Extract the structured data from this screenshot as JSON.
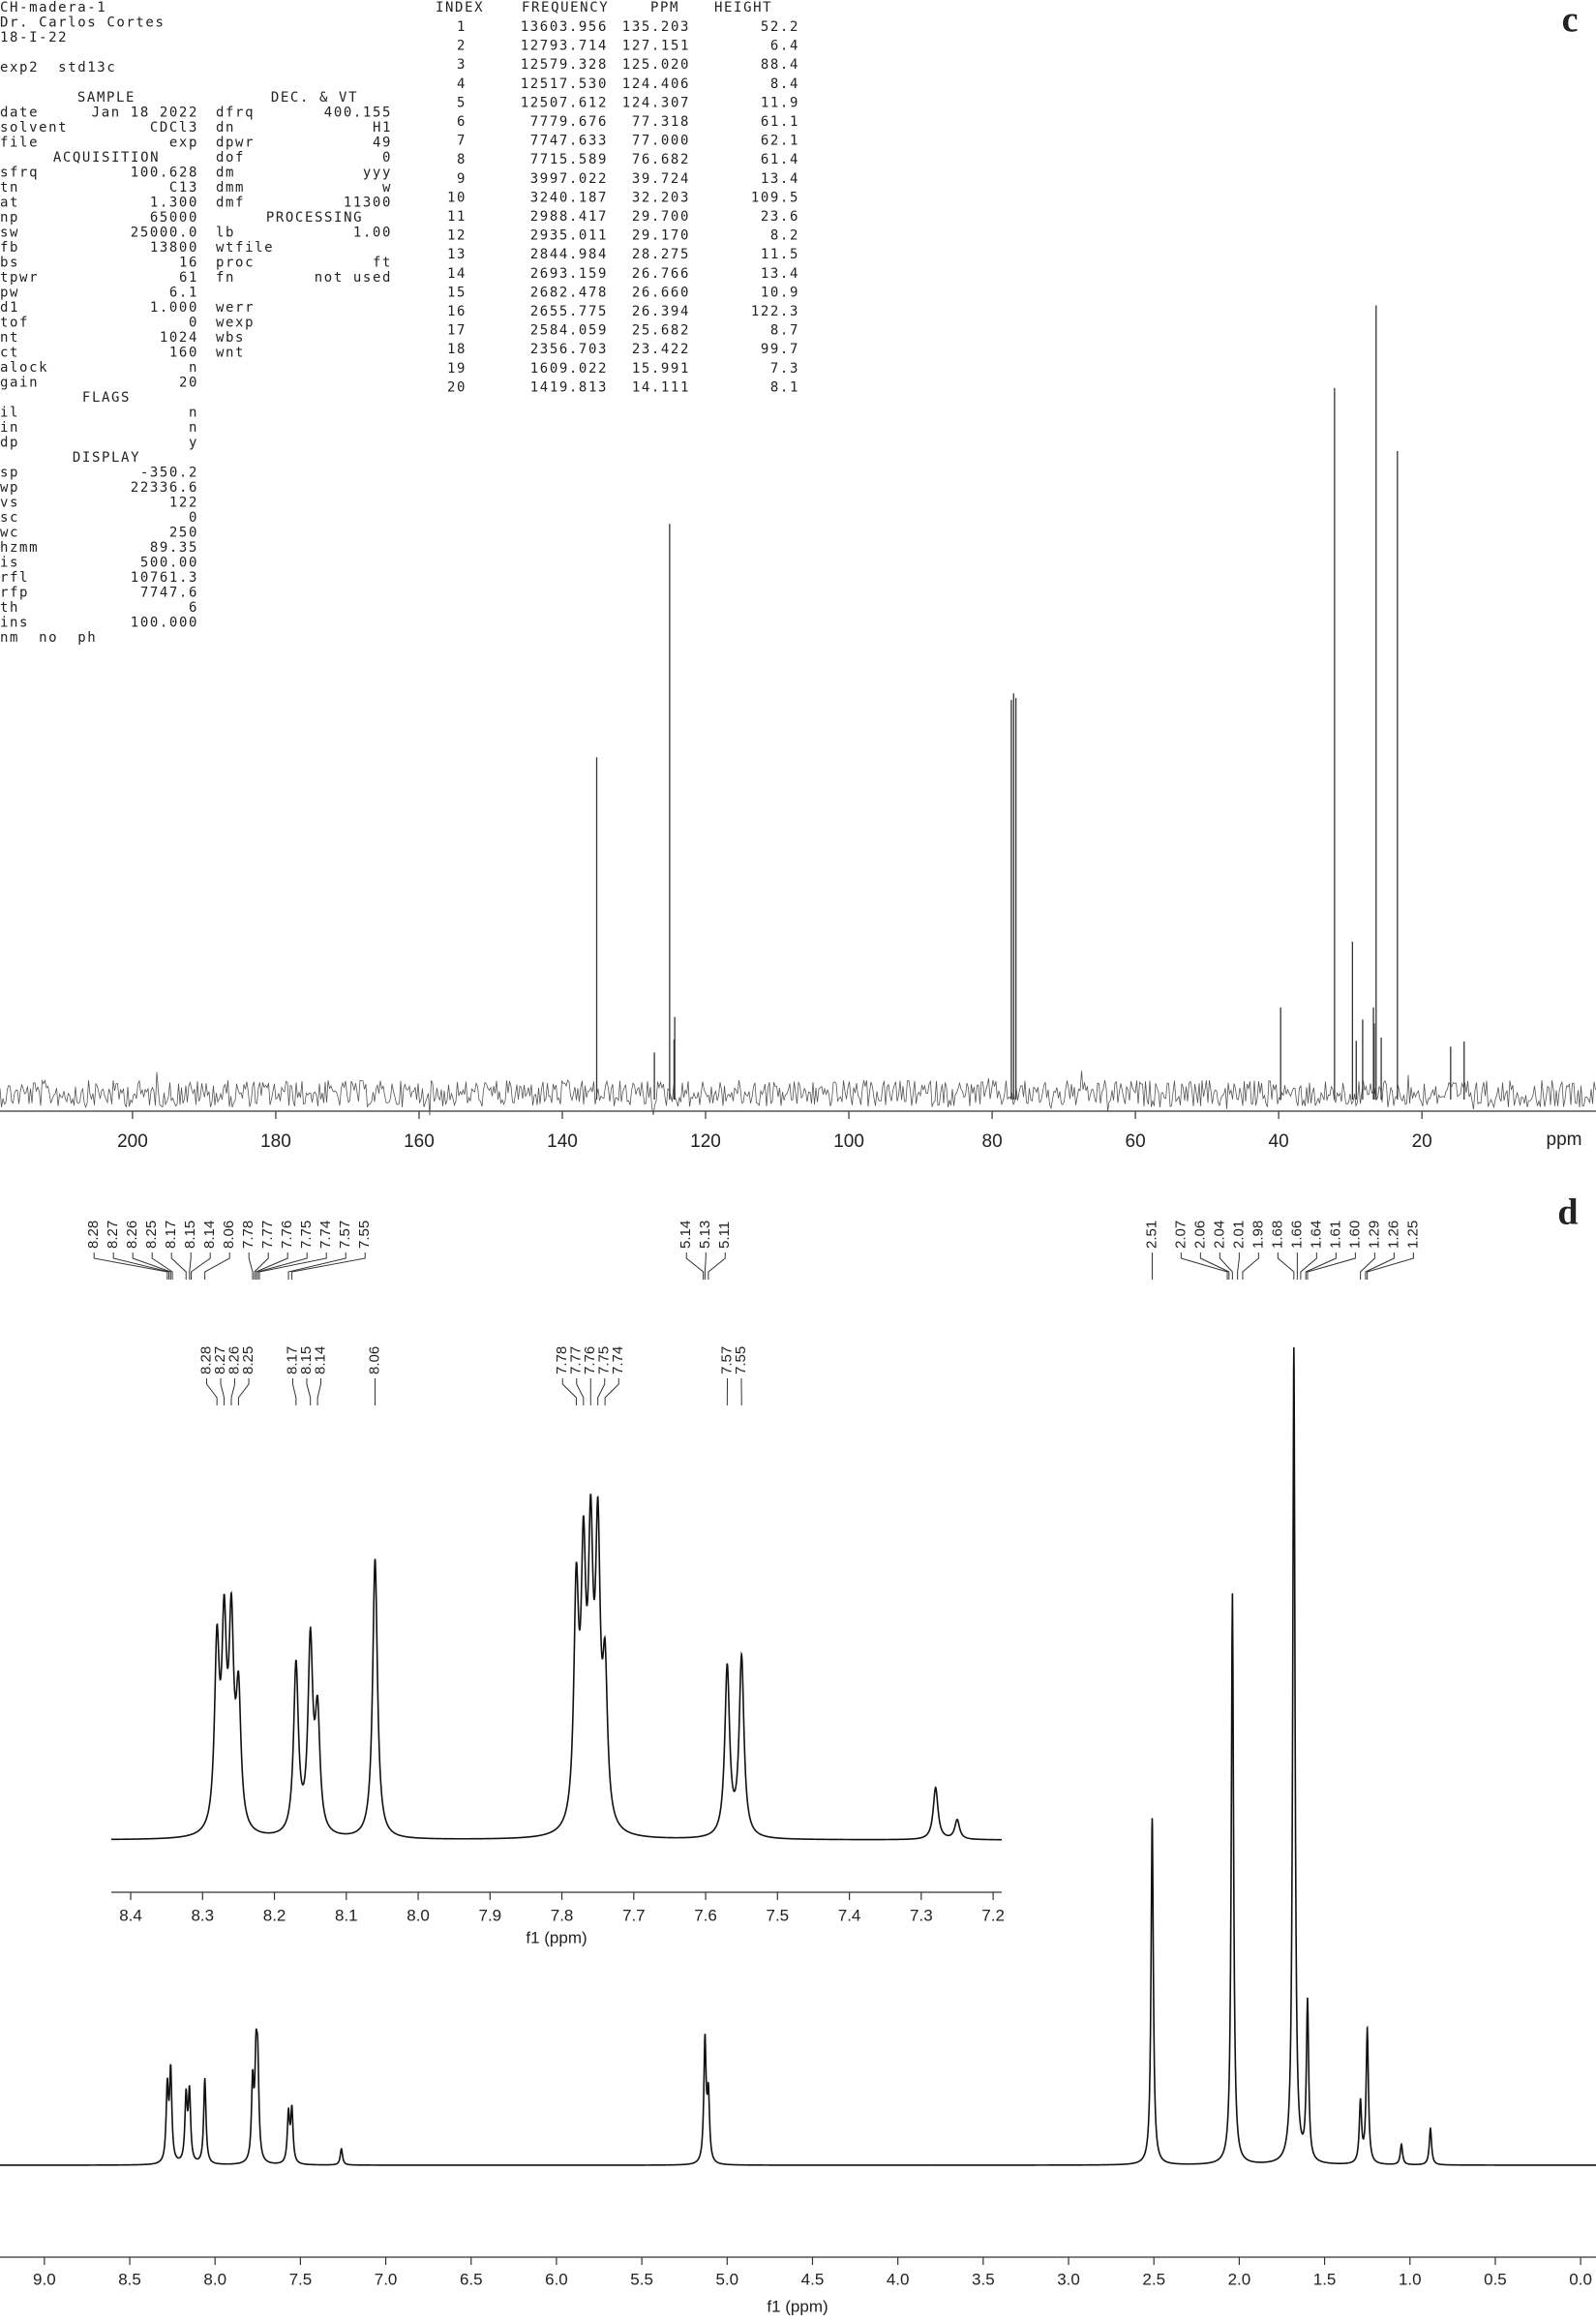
{
  "parameters": {
    "header": [
      "CH-madera-1",
      "Dr. Carlos Cortes",
      "18-I-22"
    ],
    "experiment": "exp2  std13c",
    "left": [
      "SAMPLE",
      [
        "date",
        "Jan 18 2022"
      ],
      [
        "solvent",
        "CDCl3"
      ],
      [
        "file",
        "exp"
      ],
      "ACQUISITION",
      [
        "sfrq",
        "100.628"
      ],
      [
        "tn",
        "C13"
      ],
      [
        "at",
        "1.300"
      ],
      [
        "np",
        "65000"
      ],
      [
        "sw",
        "25000.0"
      ],
      [
        "fb",
        "13800"
      ],
      [
        "bs",
        "16"
      ],
      [
        "tpwr",
        "61"
      ],
      [
        "pw",
        "6.1"
      ],
      [
        "d1",
        "1.000"
      ],
      [
        "tof",
        "0"
      ],
      [
        "nt",
        "1024"
      ],
      [
        "ct",
        "160"
      ],
      [
        "alock",
        "n"
      ],
      [
        "gain",
        "20"
      ],
      "FLAGS",
      [
        "il",
        "n"
      ],
      [
        "in",
        "n"
      ],
      [
        "dp",
        "y"
      ],
      "DISPLAY",
      [
        "sp",
        "-350.2"
      ],
      [
        "wp",
        "22336.6"
      ],
      [
        "vs",
        "122"
      ],
      [
        "sc",
        "0"
      ],
      [
        "wc",
        "250"
      ],
      [
        "hzmm",
        "89.35"
      ],
      [
        "is",
        "500.00"
      ],
      [
        "rfl",
        "10761.3"
      ],
      [
        "rfp",
        "7747.6"
      ],
      [
        "th",
        "6"
      ],
      [
        "ins",
        "100.000"
      ]
    ],
    "footer": "nm  no  ph",
    "right": [
      "DEC. & VT",
      [
        "dfrq",
        "400.155"
      ],
      [
        "dn",
        "H1"
      ],
      [
        "dpwr",
        "49"
      ],
      [
        "dof",
        "0"
      ],
      [
        "dm",
        "yyy"
      ],
      [
        "dmm",
        "w"
      ],
      [
        "dmf",
        "11300"
      ],
      "PROCESSING",
      [
        "lb",
        "1.00"
      ],
      [
        "wtfile"
      ],
      [
        "proc",
        "ft"
      ],
      [
        "fn",
        "not used"
      ]
    ],
    "right_lower": [
      [
        "werr"
      ],
      [
        "wexp"
      ],
      [
        "wbs"
      ],
      [
        "wnt"
      ]
    ]
  },
  "peak_table": {
    "columns": [
      "INDEX",
      "FREQUENCY",
      "PPM",
      "HEIGHT"
    ],
    "rows": [
      [
        "1",
        "13603.956",
        "135.203",
        "52.2"
      ],
      [
        "2",
        "12793.714",
        "127.151",
        "6.4"
      ],
      [
        "3",
        "12579.328",
        "125.020",
        "88.4"
      ],
      [
        "4",
        "12517.530",
        "124.406",
        "8.4"
      ],
      [
        "5",
        "12507.612",
        "124.307",
        "11.9"
      ],
      [
        "6",
        "7779.676",
        "77.318",
        "61.1"
      ],
      [
        "7",
        "7747.633",
        "77.000",
        "62.1"
      ],
      [
        "8",
        "7715.589",
        "76.682",
        "61.4"
      ],
      [
        "9",
        "3997.022",
        "39.724",
        "13.4"
      ],
      [
        "10",
        "3240.187",
        "32.203",
        "109.5"
      ],
      [
        "11",
        "2988.417",
        "29.700",
        "23.6"
      ],
      [
        "12",
        "2935.011",
        "29.170",
        "8.2"
      ],
      [
        "13",
        "2844.984",
        "28.275",
        "11.5"
      ],
      [
        "14",
        "2693.159",
        "26.766",
        "13.4"
      ],
      [
        "15",
        "2682.478",
        "26.660",
        "10.9"
      ],
      [
        "16",
        "2655.775",
        "26.394",
        "122.3"
      ],
      [
        "17",
        "2584.059",
        "25.682",
        "8.7"
      ],
      [
        "18",
        "2356.703",
        "23.422",
        "99.7"
      ],
      [
        "19",
        "1609.022",
        "15.991",
        "7.3"
      ],
      [
        "20",
        "1419.813",
        "14.111",
        "8.1"
      ]
    ]
  },
  "chart_data": [
    {
      "type": "stick",
      "label": "c",
      "x_label": "ppm",
      "x": [
        135.203,
        127.151,
        125.02,
        124.406,
        124.307,
        77.318,
        77,
        76.682,
        39.724,
        32.203,
        29.7,
        29.17,
        28.275,
        26.766,
        26.66,
        26.394,
        25.682,
        23.422,
        15.991,
        14.111
      ],
      "values": [
        52.2,
        6.4,
        88.4,
        8.4,
        11.9,
        61.1,
        62.1,
        61.4,
        13.4,
        109.5,
        23.6,
        8.2,
        11.5,
        13.4,
        10.9,
        122.3,
        8.7,
        99.7,
        7.3,
        8.1
      ],
      "xlim": [
        218.5,
        -4.3
      ],
      "xticks": [
        200,
        180,
        160,
        140,
        120,
        100,
        80,
        60,
        40,
        20
      ],
      "color": "#333333"
    },
    {
      "type": "spectrum",
      "label": "d",
      "x_label": "f1 (ppm)",
      "x": [
        8.28,
        8.26,
        8.17,
        8.15,
        8.06,
        7.78,
        7.76,
        7.75,
        7.57,
        7.55,
        7.26,
        5.13,
        5.11,
        2.51,
        2.04,
        1.68,
        1.6,
        1.29,
        1.25,
        1.05,
        0.88
      ],
      "values": [
        9,
        11,
        8,
        8.5,
        10.5,
        9.5,
        11,
        10.5,
        6,
        6.5,
        2,
        15,
        8,
        42.5,
        70,
        100,
        19.5,
        7.5,
        16.5,
        2.5,
        4.5
      ],
      "xlim": [
        9.26,
        -0.09
      ],
      "xticks": [
        {
          "value": 9,
          "label": "9.0"
        },
        8.5,
        {
          "value": 8,
          "label": "8.0"
        },
        7.5,
        {
          "value": 7,
          "label": "7.0"
        },
        6.5,
        {
          "value": 6,
          "label": "6.0"
        },
        5.5,
        {
          "value": 5,
          "label": "5.0"
        },
        4.5,
        {
          "value": 4,
          "label": "4.0"
        },
        3.5,
        {
          "value": 3,
          "label": "3.0"
        },
        2.5,
        {
          "value": 2,
          "label": "2.0"
        },
        1.5,
        {
          "value": 1,
          "label": "1.0"
        },
        0.5,
        {
          "value": 0,
          "label": "0.0"
        }
      ],
      "annotations": [
        [
          8.28,
          8.27,
          8.26,
          8.25,
          8.17,
          8.15,
          8.14,
          8.06,
          7.78,
          7.77,
          7.76,
          7.75,
          7.74,
          7.57,
          7.55
        ],
        [
          5.14,
          5.13,
          5.11
        ],
        [
          2.51
        ],
        [
          2.07,
          2.06,
          2.04,
          2.01,
          1.98,
          1.68,
          1.66,
          1.64,
          1.61,
          {
            "value": 1.6,
            "label": "1.60"
          },
          1.29,
          1.26,
          1.25
        ]
      ],
      "color": "#111111"
    },
    {
      "type": "spectrum",
      "x_label": "f1 (ppm)",
      "x": [
        8.28,
        8.27,
        8.26,
        8.25,
        8.17,
        8.15,
        8.14,
        8.06,
        7.78,
        7.77,
        7.76,
        7.75,
        7.74,
        7.57,
        7.55,
        7.28,
        7.25
      ],
      "values": [
        55,
        58,
        60,
        40,
        52,
        58,
        35,
        86,
        70,
        75,
        80,
        84,
        45,
        52,
        55,
        16,
        6
      ],
      "xlim": [
        8.427,
        7.188
      ],
      "xticks": [
        8.4,
        8.3,
        8.2,
        8.1,
        {
          "value": 8,
          "label": "8.0"
        },
        7.9,
        7.8,
        7.7,
        7.6,
        7.5,
        7.4,
        7.3,
        7.2
      ],
      "annotations": [
        [
          8.28,
          8.27,
          8.26,
          8.25
        ],
        [
          8.17,
          8.15,
          8.14
        ],
        [
          8.06
        ],
        [
          7.78,
          7.77,
          7.76,
          7.75,
          7.74
        ],
        [
          7.57,
          7.55
        ]
      ],
      "color": "#111111"
    }
  ]
}
